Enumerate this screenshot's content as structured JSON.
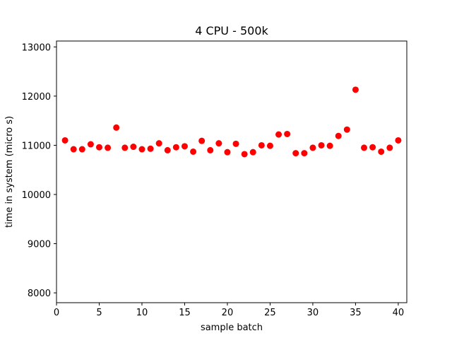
{
  "chart_data": {
    "type": "scatter",
    "title": "4 CPU - 500k",
    "xlabel": "sample batch",
    "ylabel": "time in system (micro s)",
    "xlim": [
      0,
      41
    ],
    "ylim": [
      7800,
      13120
    ],
    "xticks": [
      0,
      5,
      10,
      15,
      20,
      25,
      30,
      35,
      40
    ],
    "yticks": [
      8000,
      9000,
      10000,
      11000,
      12000,
      13000
    ],
    "grid": false,
    "marker_color": "#ff0000",
    "series": [
      {
        "x": [
          1,
          2,
          3,
          4,
          5,
          6,
          7,
          8,
          9,
          10,
          11,
          12,
          13,
          14,
          15,
          16,
          17,
          18,
          19,
          20,
          21,
          22,
          23,
          24,
          25,
          26,
          27,
          28,
          29,
          30,
          31,
          32,
          33,
          34,
          35,
          36,
          37,
          38,
          39,
          40
        ],
        "y": [
          11100,
          10920,
          10920,
          11020,
          10960,
          10950,
          11360,
          10950,
          10970,
          10920,
          10930,
          11040,
          10900,
          10960,
          10980,
          10870,
          11090,
          10900,
          11040,
          10860,
          11030,
          10820,
          10860,
          11000,
          10990,
          11220,
          11230,
          10840,
          10840,
          10950,
          11000,
          10990,
          11190,
          11320,
          12130,
          10950,
          10960,
          10870,
          10950,
          11100
        ]
      }
    ]
  }
}
